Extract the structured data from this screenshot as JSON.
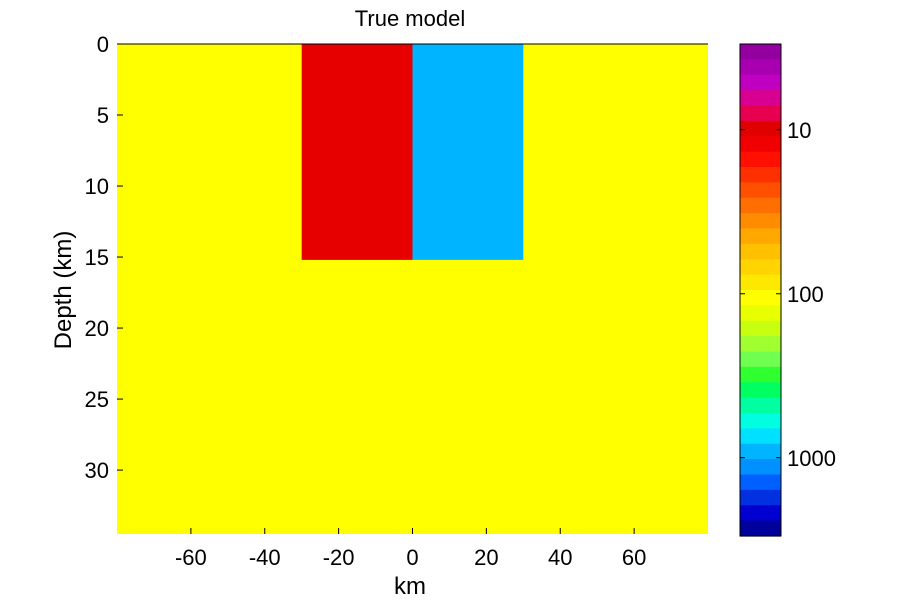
{
  "chart_data": {
    "type": "heatmap",
    "title": "True model",
    "xlabel": "km",
    "ylabel": "Depth (km)",
    "xlim": [
      -80,
      80
    ],
    "ylim": [
      0,
      34.5
    ],
    "y_reversed": true,
    "xticks": [
      -60,
      -40,
      -20,
      0,
      20,
      40,
      60
    ],
    "xtick_labels": [
      "-60",
      "-40",
      "-20",
      "0",
      "20",
      "40",
      "60"
    ],
    "yticks": [
      0,
      5,
      10,
      15,
      20,
      25,
      30
    ],
    "ytick_labels": [
      "0",
      "5",
      "10",
      "15",
      "20",
      "25",
      "30"
    ],
    "background": {
      "value": 100,
      "color": "#ffff00"
    },
    "anomalies": [
      {
        "x": [
          -30,
          0
        ],
        "depth": [
          0,
          15.2
        ],
        "value": 10,
        "color": "#e60000"
      },
      {
        "x": [
          0,
          30
        ],
        "depth": [
          0,
          15.2
        ],
        "value": 1000,
        "color": "#00b4ff"
      }
    ],
    "colorbar": {
      "scale": "log",
      "reversed": true,
      "range": [
        3,
        3000
      ],
      "ticks": [
        10,
        100,
        1000
      ],
      "tick_labels": [
        "10",
        "100",
        "1000"
      ],
      "colormap": [
        "#9400a0",
        "#a800b0",
        "#c000c0",
        "#d80090",
        "#e80050",
        "#e00000",
        "#f00000",
        "#ff1000",
        "#ff3000",
        "#ff5000",
        "#ff6e00",
        "#ff8c00",
        "#ffa800",
        "#ffc000",
        "#ffd400",
        "#ffe800",
        "#ffff00",
        "#e8ff00",
        "#c8ff10",
        "#a0ff30",
        "#70ff50",
        "#30ff30",
        "#00ff60",
        "#00ffa0",
        "#00ffe0",
        "#00e0ff",
        "#00b4ff",
        "#0090ff",
        "#0060ff",
        "#0030e0",
        "#0000d0",
        "#00009a"
      ]
    }
  }
}
